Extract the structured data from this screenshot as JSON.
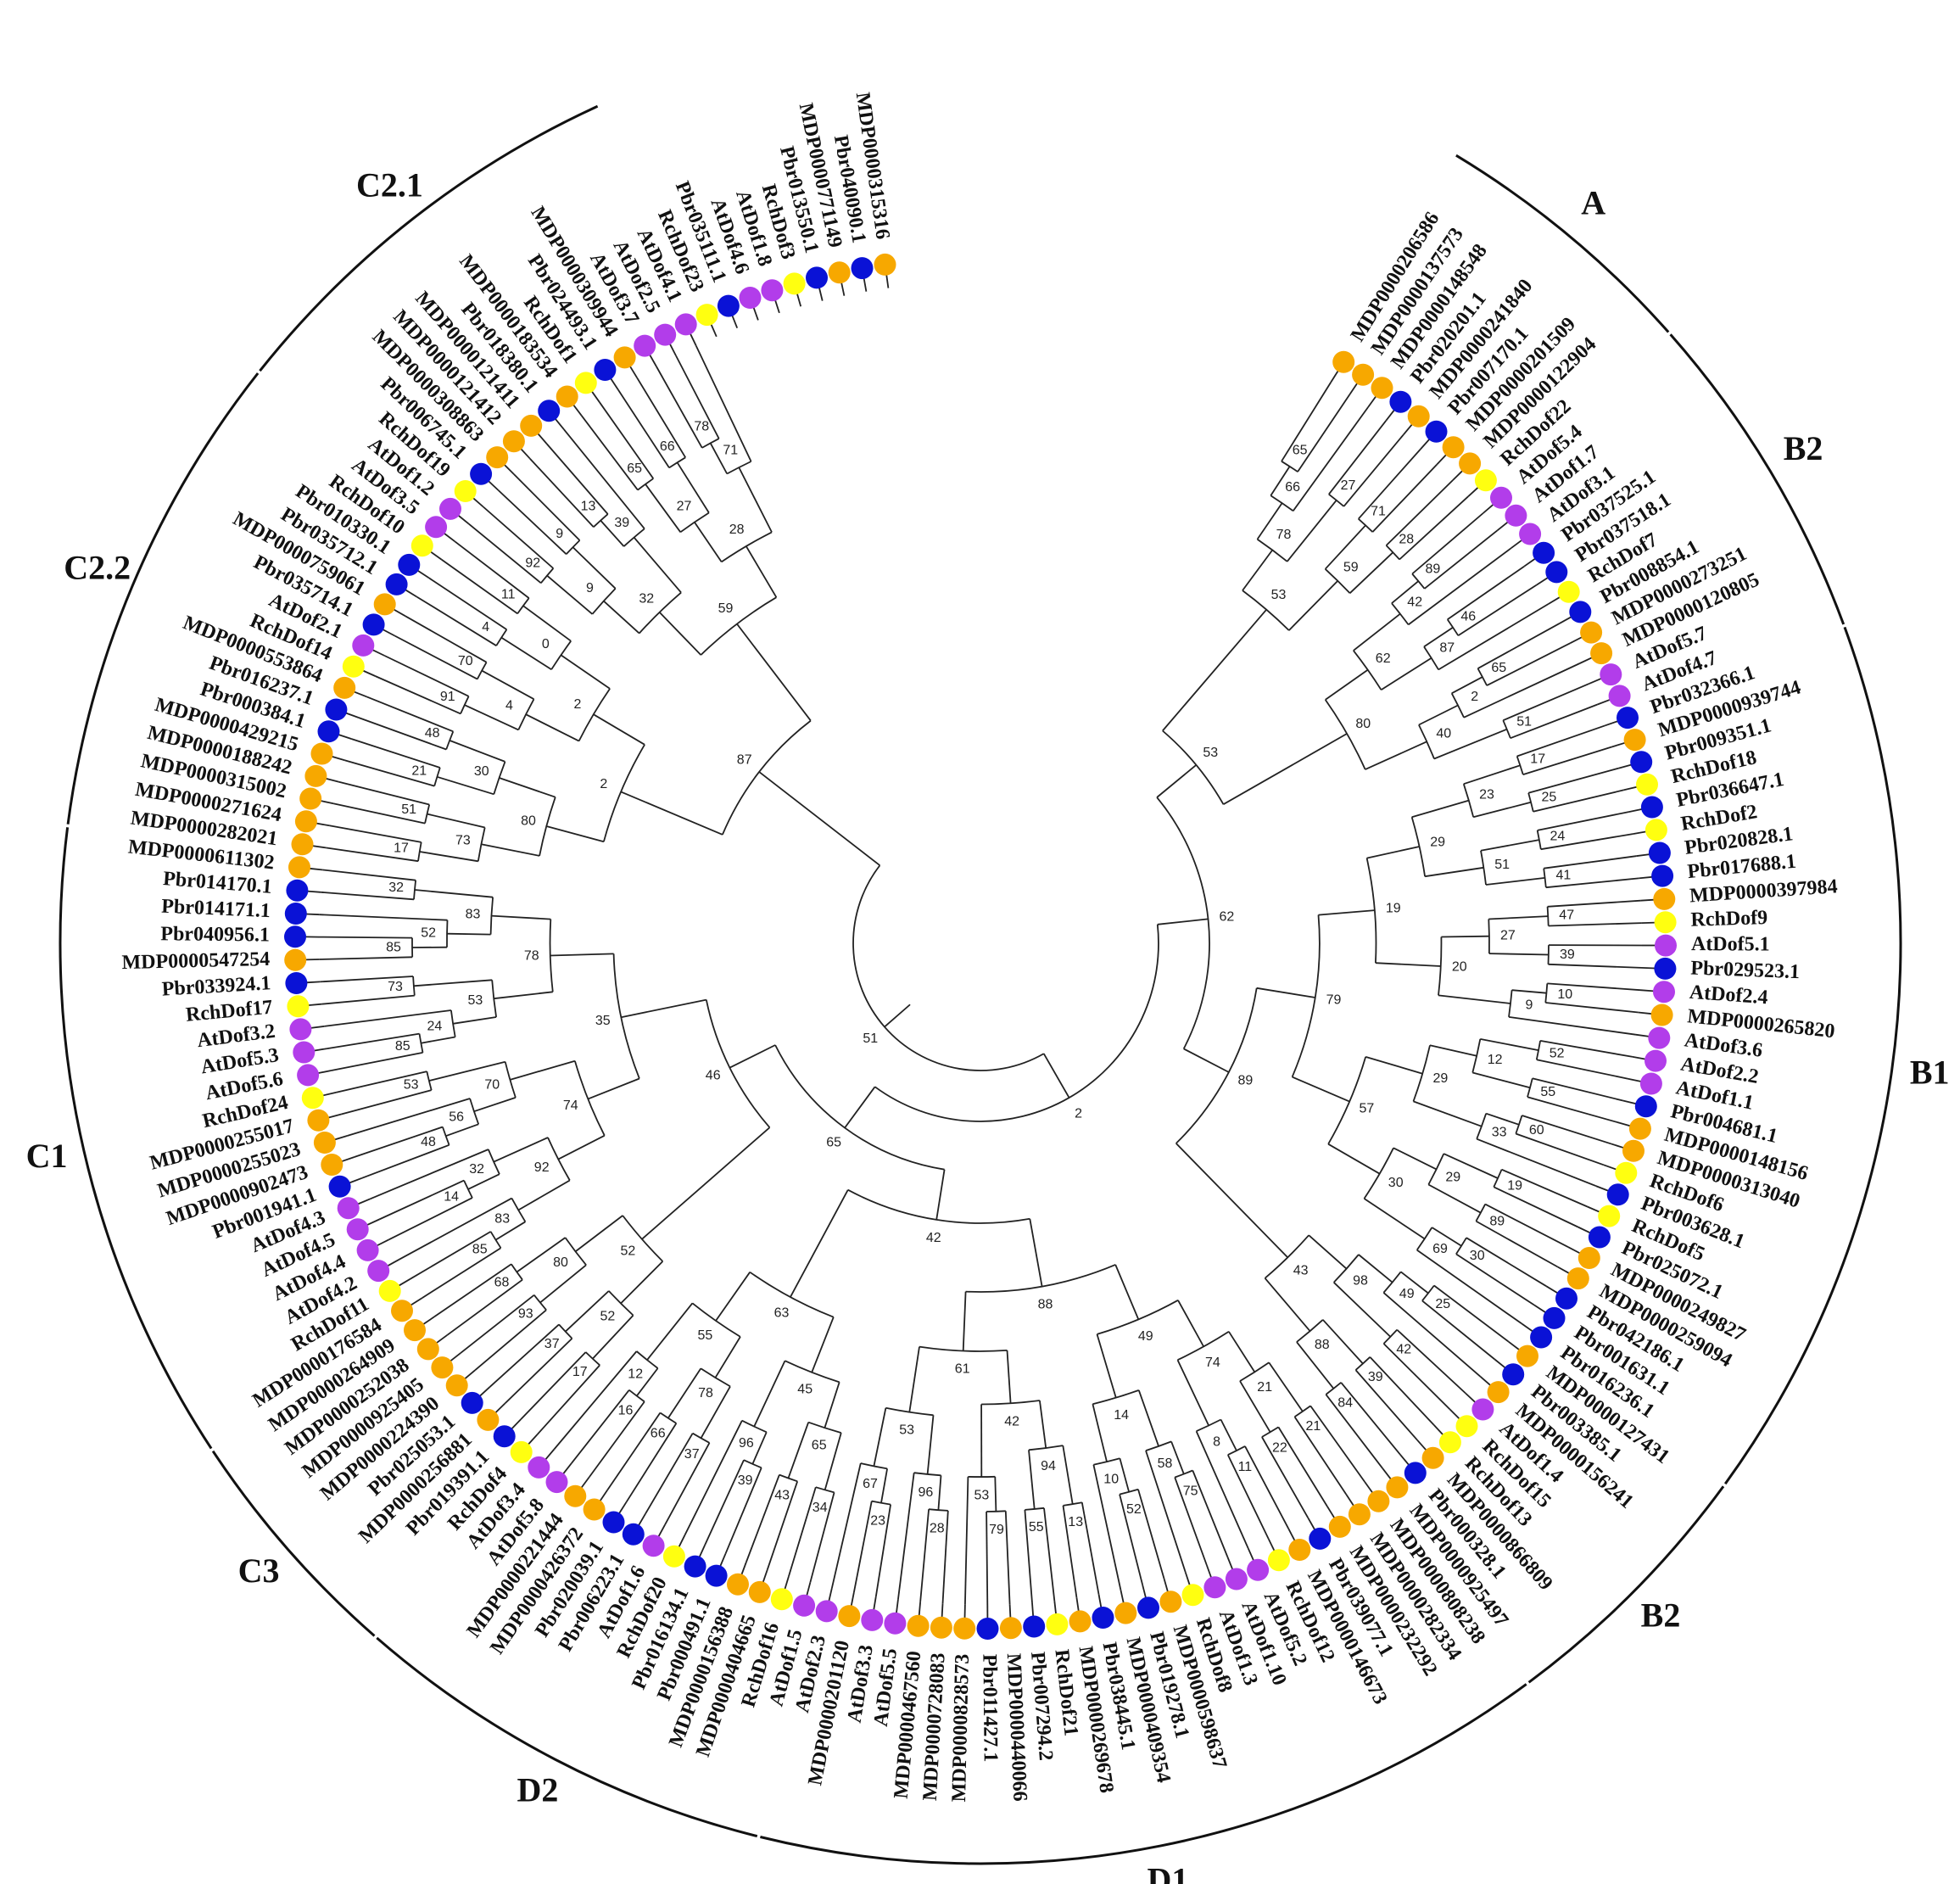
{
  "colors": {
    "MDP": "#f7a800",
    "Pbr": "#0a12d6",
    "Rch": "#ffff10",
    "At": "#b23dea"
  },
  "groups": [
    {
      "label": "A",
      "start": 1,
      "end": 9
    },
    {
      "label": "B2",
      "start": 10,
      "end": 20
    },
    {
      "label": "B1",
      "start": 21,
      "end": 49
    },
    {
      "label": "B2",
      "start": 50,
      "end": 58
    },
    {
      "label": "D1",
      "start": 59,
      "end": 84
    },
    {
      "label": "D2",
      "start": 85,
      "end": 98
    },
    {
      "label": "C3",
      "start": 99,
      "end": 106
    },
    {
      "label": "C1",
      "start": 107,
      "end": 127
    },
    {
      "label": "C2.2",
      "start": 128,
      "end": 143
    },
    {
      "label": "C2.1",
      "start": 144,
      "end": 157
    }
  ],
  "leaves": [
    "MDP0000206586",
    "MDP0000137573",
    "MDP0000148548",
    "Pbr020201.1",
    "MDP0000241840",
    "Pbr007170.1",
    "MDP0000201509",
    "MDP0000122904",
    "RchDof22",
    "AtDof5.4",
    "AtDof1.7",
    "AtDof3.1",
    "Pbr037525.1",
    "Pbr037518.1",
    "RchDof7",
    "Pbr008854.1",
    "MDP0000273251",
    "MDP0000120805",
    "AtDof5.7",
    "AtDof4.7",
    "Pbr032366.1",
    "MDP0000939744",
    "Pbr009351.1",
    "RchDof18",
    "Pbr036647.1",
    "RchDof2",
    "Pbr020828.1",
    "Pbr017688.1",
    "MDP0000397984",
    "RchDof9",
    "AtDof5.1",
    "Pbr029523.1",
    "AtDof2.4",
    "MDP0000265820",
    "AtDof3.6",
    "AtDof2.2",
    "AtDof1.1",
    "Pbr004681.1",
    "MDP0000148156",
    "MDP0000313040",
    "RchDof6",
    "Pbr003628.1",
    "RchDof5",
    "Pbr025072.1",
    "MDP0000249827",
    "MDP0000259094",
    "Pbr042186.1",
    "Pbr001631.1",
    "Pbr016236.1",
    "MDP0000127431",
    "Pbr003385.1",
    "MDP0000156241",
    "AtDof1.4",
    "RchDof15",
    "RchDof13",
    "MDP0000866809",
    "Pbr000328.1",
    "MDP0000925497",
    "MDP0000808238",
    "MDP0000282334",
    "MDP0000232292",
    "Pbr039077.1",
    "MDP0000146673",
    "RchDof12",
    "AtDof5.2",
    "AtDof1.10",
    "AtDof1.3",
    "RchDof8",
    "MDP0000598637",
    "Pbr019278.1",
    "MDP0000409354",
    "Pbr038445.1",
    "MDP0000269678",
    "RchDof21",
    "Pbr007294.2",
    "MDP0000440066",
    "Pbr011427.1",
    "MDP0000828573",
    "MDP0000728083",
    "MDP0000467560",
    "AtDof5.5",
    "AtDof3.3",
    "MDP0000201120",
    "AtDof2.3",
    "AtDof1.5",
    "RchDof16",
    "MDP0000404665",
    "MDP0000156388",
    "Pbr000491.1",
    "Pbr016134.1",
    "RchDof20",
    "AtDof1.6",
    "Pbr006223.1",
    "Pbr020039.1",
    "MDP0000426372",
    "MDP0000221444",
    "AtDof5.8",
    "AtDof3.4",
    "RchDof4",
    "Pbr019391.1",
    "MDP0000256881",
    "Pbr025053.1",
    "MDP0000224390",
    "MDP0000925405",
    "MDP0000252038",
    "MDP0000264909",
    "MDP0000176584",
    "RchDof11",
    "AtDof4.2",
    "AtDof4.4",
    "AtDof4.5",
    "AtDof4.3",
    "Pbr001941.1",
    "MDP0000902473",
    "MDP0000255023",
    "MDP0000255017",
    "RchDof24",
    "AtDof5.6",
    "AtDof5.3",
    "AtDof3.2",
    "RchDof17",
    "Pbr033924.1",
    "MDP0000547254",
    "Pbr040956.1",
    "Pbr014171.1",
    "Pbr014170.1",
    "MDP0000611302",
    "MDP0000282021",
    "MDP0000271624",
    "MDP0000315002",
    "MDP0000188242",
    "MDP0000429215",
    "Pbr000384.1",
    "Pbr016237.1",
    "MDP0000553864",
    "RchDof14",
    "AtDof2.1",
    "Pbr035714.1",
    "MDP0000759061",
    "Pbr035712.1",
    "Pbr010330.1",
    "RchDof10",
    "AtDof3.5",
    "AtDof1.2",
    "RchDof19",
    "Pbr006745.1",
    "MDP0000308863",
    "MDP0000121412",
    "MDP0000121411",
    "Pbr018380.1",
    "MDP0000183534",
    "RchDof1",
    "Pbr024493.1",
    "MDP0000309944",
    "AtDof3.7",
    "AtDof2.5",
    "AtDof4.1",
    "RchDof23",
    "Pbr035111.1",
    "AtDof4.6",
    "AtDof1.8",
    "RchDof3",
    "Pbr013550.1",
    "MDP0000771149",
    "Pbr040090.1",
    "MDP0000315316"
  ],
  "bootstrap": [
    "65",
    "66",
    "27",
    "78",
    "71",
    "28",
    "59",
    "53",
    "89",
    "42",
    "46",
    "87",
    "62",
    "65",
    "2",
    "51",
    "40",
    "80",
    "17",
    "25",
    "23",
    "24",
    "41",
    "51",
    "29",
    "47",
    "39",
    "27",
    "10",
    "9",
    "20",
    "19",
    "52",
    "55",
    "12",
    "60",
    "33",
    "29",
    "19",
    "89",
    "29",
    "30",
    "69",
    "30",
    "57",
    "79",
    "25",
    "49",
    "42",
    "98",
    "39",
    "84",
    "88",
    "43",
    "21",
    "22",
    "21",
    "11",
    "8",
    "74",
    "75",
    "58",
    "52",
    "10",
    "14",
    "49",
    "13",
    "55",
    "94",
    "79",
    "53",
    "42",
    "28",
    "96",
    "23",
    "67",
    "53",
    "61",
    "88",
    "34",
    "43",
    "65",
    "39",
    "96",
    "45",
    "37",
    "66",
    "78",
    "16",
    "12",
    "55",
    "63",
    "17",
    "37",
    "52",
    "93",
    "68",
    "80",
    "52",
    "85",
    "83",
    "14",
    "32",
    "92",
    "48",
    "56",
    "53",
    "70",
    "74",
    "85",
    "24",
    "73",
    "53",
    "85",
    "52",
    "32",
    "83",
    "78",
    "35",
    "17",
    "51",
    "73",
    "21",
    "48",
    "30",
    "80",
    "91",
    "70",
    "4",
    "4",
    "11",
    "0",
    "2",
    "2",
    "92",
    "9",
    "9",
    "13",
    "39",
    "32"
  ]
}
